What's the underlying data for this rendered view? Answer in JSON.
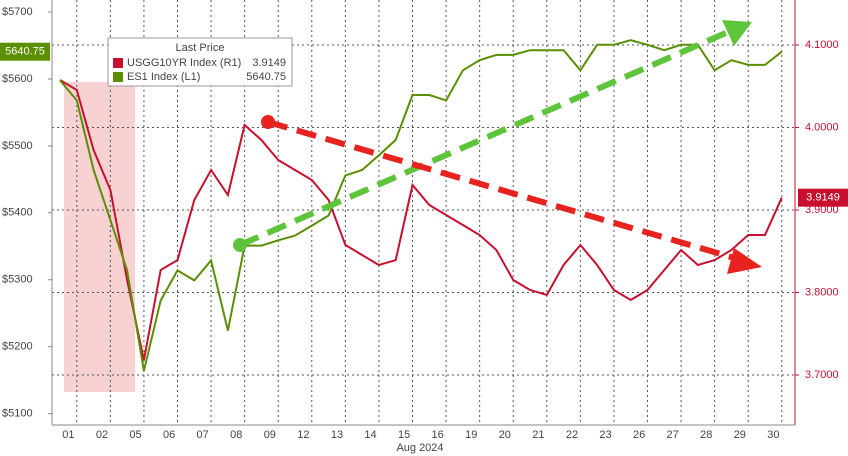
{
  "chart_data": {
    "type": "line",
    "legend_title": "Last Price",
    "x_label": "Aug 2024",
    "categories": [
      "01",
      null,
      "02",
      null,
      "05",
      null,
      "06",
      null,
      "07",
      null,
      "08",
      null,
      "09",
      null,
      "12",
      null,
      "13",
      null,
      "14",
      null,
      "15",
      null,
      "16",
      null,
      "19",
      null,
      "20",
      null,
      "21",
      null,
      "22",
      null,
      "23",
      null,
      "26",
      null,
      "27",
      null,
      "28",
      null,
      "29",
      null,
      "30",
      null
    ],
    "series": [
      {
        "name": "USGG10YR Index (R1)",
        "color": "#c8102e",
        "axis": "y2",
        "last_value": 3.9149,
        "values": [
          4.0575,
          4.0454,
          3.9727,
          3.9242,
          3.8151,
          3.7181,
          3.8272,
          3.8393,
          3.9121,
          3.9484,
          3.9181,
          4.003,
          3.9848,
          3.9606,
          3.9484,
          3.9363,
          3.9121,
          3.8575,
          3.8454,
          3.8333,
          3.8393,
          3.9303,
          3.906,
          3.8939,
          3.8818,
          3.8697,
          3.8515,
          3.8151,
          3.803,
          3.797,
          3.8333,
          3.8575,
          3.8333,
          3.803,
          3.7909,
          3.803,
          3.8272,
          3.8515,
          3.8333,
          3.8393,
          3.8515,
          3.8697,
          3.8697,
          3.9149
        ]
      },
      {
        "name": "ES1 Index (L1)",
        "color": "#5a8f00",
        "axis": "y",
        "last_value": 5640.75,
        "values": [
          5598,
          5568,
          5464,
          5389,
          5314,
          5164,
          5269,
          5314,
          5299,
          5329,
          5224,
          5351,
          5351,
          5359,
          5366,
          5381,
          5396,
          5456,
          5464,
          5486,
          5509,
          5576,
          5576,
          5568,
          5613,
          5628,
          5636,
          5636,
          5643,
          5643,
          5643,
          5613,
          5651,
          5651,
          5658,
          5651,
          5643,
          5651,
          5651,
          5613,
          5628,
          5621,
          5621,
          5640.75
        ]
      }
    ],
    "ylim": [
      5083,
      5718
    ],
    "yticks": [
      {
        "value": 5100,
        "label": "$5100"
      },
      {
        "value": 5200,
        "label": "$5200"
      },
      {
        "value": 5300,
        "label": "$5300"
      },
      {
        "value": 5400,
        "label": "$5400"
      },
      {
        "value": 5500,
        "label": "$5500"
      },
      {
        "value": 5600,
        "label": "$5600"
      },
      {
        "value": 5700,
        "label": "$5700"
      }
    ],
    "y2lim": [
      3.6394,
      4.1545
    ],
    "y2ticks": [
      {
        "value": 3.7,
        "label": "3.7000"
      },
      {
        "value": 3.8,
        "label": "3.8000"
      },
      {
        "value": 3.9,
        "label": "3.9000"
      },
      {
        "value": 4.0,
        "label": "4.0000"
      },
      {
        "value": 4.1,
        "label": "4.1000"
      }
    ],
    "grid": true
  }
}
